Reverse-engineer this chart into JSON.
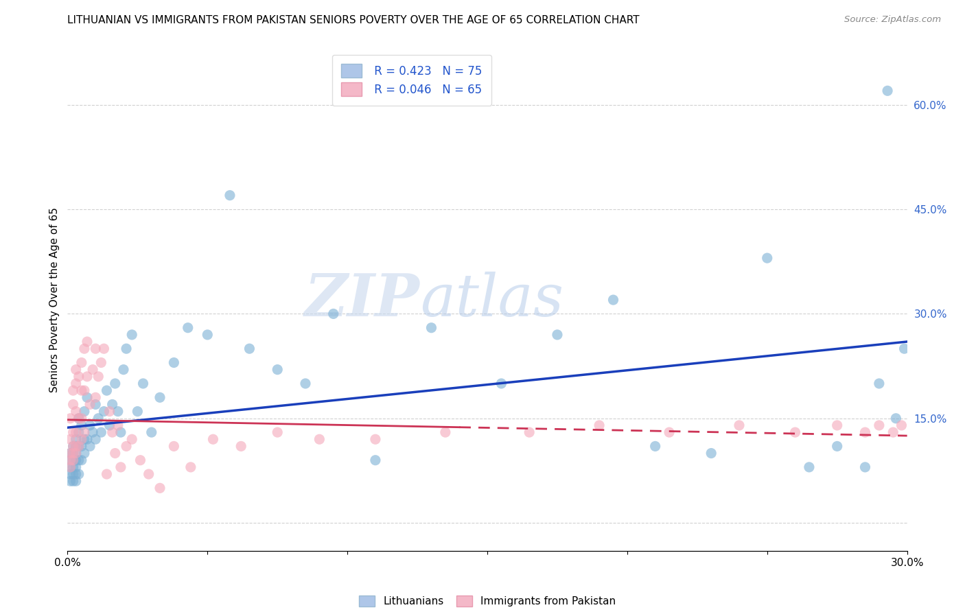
{
  "title": "LITHUANIAN VS IMMIGRANTS FROM PAKISTAN SENIORS POVERTY OVER THE AGE OF 65 CORRELATION CHART",
  "source": "Source: ZipAtlas.com",
  "ylabel": "Seniors Poverty Over the Age of 65",
  "r_blue": 0.423,
  "n_blue": 75,
  "r_pink": 0.046,
  "n_pink": 65,
  "blue_color": "#7bafd4",
  "pink_color": "#f4a7b9",
  "trend_blue_color": "#1a3fbb",
  "trend_pink_color": "#cc3355",
  "legend_blue_fill": "#aec6e8",
  "legend_pink_fill": "#f4b8c8",
  "xmin": 0.0,
  "xmax": 0.3,
  "ymin": -0.04,
  "ymax": 0.68,
  "right_yticks": [
    0.0,
    0.15,
    0.3,
    0.45,
    0.6
  ],
  "right_yticklabels": [
    "",
    "15.0%",
    "30.0%",
    "45.0%",
    "60.0%"
  ],
  "grid_color": "#cccccc",
  "watermark_zip": "ZIP",
  "watermark_atlas": "atlas",
  "blue_x": [
    0.001,
    0.001,
    0.001,
    0.001,
    0.001,
    0.002,
    0.002,
    0.002,
    0.002,
    0.002,
    0.002,
    0.003,
    0.003,
    0.003,
    0.003,
    0.003,
    0.003,
    0.003,
    0.004,
    0.004,
    0.004,
    0.004,
    0.004,
    0.005,
    0.005,
    0.005,
    0.006,
    0.006,
    0.006,
    0.007,
    0.007,
    0.008,
    0.008,
    0.009,
    0.01,
    0.01,
    0.011,
    0.012,
    0.013,
    0.014,
    0.015,
    0.016,
    0.017,
    0.018,
    0.019,
    0.02,
    0.021,
    0.023,
    0.025,
    0.027,
    0.03,
    0.033,
    0.038,
    0.043,
    0.05,
    0.058,
    0.065,
    0.075,
    0.085,
    0.095,
    0.11,
    0.13,
    0.155,
    0.175,
    0.195,
    0.21,
    0.23,
    0.25,
    0.265,
    0.275,
    0.285,
    0.29,
    0.293,
    0.296,
    0.299
  ],
  "blue_y": [
    0.06,
    0.07,
    0.08,
    0.09,
    0.1,
    0.06,
    0.07,
    0.08,
    0.09,
    0.1,
    0.11,
    0.06,
    0.07,
    0.08,
    0.09,
    0.1,
    0.11,
    0.12,
    0.07,
    0.09,
    0.11,
    0.13,
    0.15,
    0.09,
    0.11,
    0.14,
    0.1,
    0.12,
    0.16,
    0.12,
    0.18,
    0.11,
    0.14,
    0.13,
    0.12,
    0.17,
    0.15,
    0.13,
    0.16,
    0.19,
    0.14,
    0.17,
    0.2,
    0.16,
    0.13,
    0.22,
    0.25,
    0.27,
    0.16,
    0.2,
    0.13,
    0.18,
    0.23,
    0.28,
    0.27,
    0.47,
    0.25,
    0.22,
    0.2,
    0.3,
    0.09,
    0.28,
    0.2,
    0.27,
    0.32,
    0.11,
    0.1,
    0.38,
    0.08,
    0.11,
    0.08,
    0.2,
    0.62,
    0.15,
    0.25
  ],
  "pink_x": [
    0.001,
    0.001,
    0.001,
    0.001,
    0.001,
    0.002,
    0.002,
    0.002,
    0.002,
    0.002,
    0.002,
    0.003,
    0.003,
    0.003,
    0.003,
    0.003,
    0.003,
    0.004,
    0.004,
    0.004,
    0.005,
    0.005,
    0.005,
    0.005,
    0.006,
    0.006,
    0.006,
    0.007,
    0.007,
    0.008,
    0.009,
    0.01,
    0.01,
    0.011,
    0.012,
    0.013,
    0.014,
    0.015,
    0.016,
    0.017,
    0.018,
    0.019,
    0.021,
    0.023,
    0.026,
    0.029,
    0.033,
    0.038,
    0.044,
    0.052,
    0.062,
    0.075,
    0.09,
    0.11,
    0.135,
    0.165,
    0.19,
    0.215,
    0.24,
    0.26,
    0.275,
    0.285,
    0.29,
    0.295,
    0.298
  ],
  "pink_y": [
    0.08,
    0.09,
    0.1,
    0.12,
    0.15,
    0.09,
    0.1,
    0.11,
    0.13,
    0.17,
    0.19,
    0.1,
    0.11,
    0.13,
    0.16,
    0.2,
    0.22,
    0.11,
    0.15,
    0.21,
    0.12,
    0.15,
    0.19,
    0.23,
    0.13,
    0.19,
    0.25,
    0.21,
    0.26,
    0.17,
    0.22,
    0.18,
    0.25,
    0.21,
    0.23,
    0.25,
    0.07,
    0.16,
    0.13,
    0.1,
    0.14,
    0.08,
    0.11,
    0.12,
    0.09,
    0.07,
    0.05,
    0.11,
    0.08,
    0.12,
    0.11,
    0.13,
    0.12,
    0.12,
    0.13,
    0.13,
    0.14,
    0.13,
    0.14,
    0.13,
    0.14,
    0.13,
    0.14,
    0.13,
    0.14
  ]
}
